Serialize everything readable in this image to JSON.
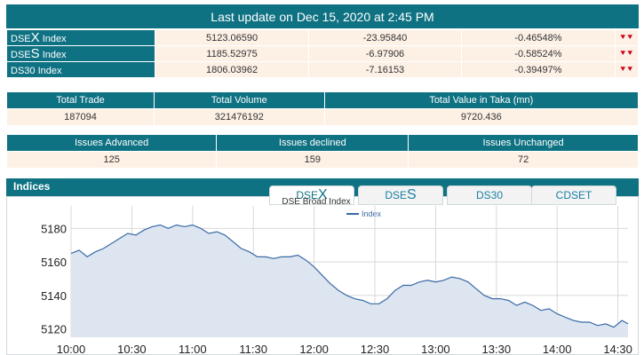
{
  "header": {
    "title": "Last update on Dec 15, 2020 at 2:45 PM"
  },
  "indices": [
    {
      "name_prefix": "DSE",
      "name_big": "X",
      "name_suffix": " Index",
      "value": "5123.06590",
      "change": "-23.95840",
      "percent": "-0.46548%",
      "arrow": "down-chevron-icon"
    },
    {
      "name_prefix": "DSE",
      "name_big": "S",
      "name_suffix": " Index",
      "value": "1185.52975",
      "change": "-6.97906",
      "percent": "-0.58524%",
      "arrow": "down-chevron-icon"
    },
    {
      "name_prefix": "DS30 Index",
      "name_big": "",
      "name_suffix": "",
      "value": "1806.03962",
      "change": "-7.16153",
      "percent": "-0.39497%",
      "arrow": "down-chevron-icon"
    }
  ],
  "trade_stats": {
    "headers": [
      "Total Trade",
      "Total Volume",
      "Total Value in Taka (mn)"
    ],
    "values": [
      "187094",
      "321476192",
      "9720.436"
    ]
  },
  "issue_stats": {
    "headers": [
      "Issues Advanced",
      "Issues declined",
      "Issues Unchanged"
    ],
    "values": [
      "125",
      "159",
      "72"
    ]
  },
  "indices_panel": {
    "title": "Indices",
    "tabs": [
      {
        "prefix": "DSE",
        "big": "X"
      },
      {
        "prefix": "DSE",
        "big": "S"
      },
      {
        "prefix": "DS30",
        "big": ""
      },
      {
        "prefix": "CDSET",
        "big": ""
      }
    ]
  },
  "colors": {
    "teal": "#0f7283",
    "cream": "#fdf1e6",
    "line": "#3a6aa6",
    "fill": "#dde6f0",
    "down": "#d0021b"
  },
  "chart_data": {
    "type": "area",
    "title": "DSE Broad Index",
    "legend": [
      "Index"
    ],
    "legend_position": "top-center",
    "x_ticks": [
      "10:00",
      "10:30",
      "11:00",
      "11:30",
      "12:00",
      "12:30",
      "13:00",
      "13:30",
      "14:00",
      "14:30"
    ],
    "y_ticks": [
      5120,
      5140,
      5160,
      5180
    ],
    "ylim": [
      5115,
      5186
    ],
    "xlim_minutes": [
      0,
      275
    ],
    "grid": true,
    "series": [
      {
        "name": "Index",
        "points": [
          [
            0,
            5165
          ],
          [
            4,
            5167
          ],
          [
            8,
            5163
          ],
          [
            12,
            5166
          ],
          [
            16,
            5168
          ],
          [
            20,
            5171
          ],
          [
            24,
            5174
          ],
          [
            28,
            5177
          ],
          [
            32,
            5176
          ],
          [
            36,
            5179
          ],
          [
            40,
            5181
          ],
          [
            44,
            5182
          ],
          [
            48,
            5180
          ],
          [
            52,
            5182
          ],
          [
            56,
            5181
          ],
          [
            60,
            5182
          ],
          [
            64,
            5180
          ],
          [
            68,
            5177
          ],
          [
            72,
            5178
          ],
          [
            76,
            5176
          ],
          [
            80,
            5172
          ],
          [
            84,
            5168
          ],
          [
            88,
            5166
          ],
          [
            92,
            5163
          ],
          [
            96,
            5163
          ],
          [
            100,
            5162
          ],
          [
            104,
            5163
          ],
          [
            108,
            5163
          ],
          [
            112,
            5164
          ],
          [
            116,
            5161
          ],
          [
            120,
            5157
          ],
          [
            124,
            5152
          ],
          [
            128,
            5147
          ],
          [
            132,
            5143
          ],
          [
            136,
            5140
          ],
          [
            140,
            5138
          ],
          [
            144,
            5137
          ],
          [
            148,
            5135
          ],
          [
            152,
            5135
          ],
          [
            156,
            5138
          ],
          [
            160,
            5143
          ],
          [
            164,
            5146
          ],
          [
            168,
            5146
          ],
          [
            172,
            5148
          ],
          [
            176,
            5149
          ],
          [
            180,
            5148
          ],
          [
            184,
            5149
          ],
          [
            188,
            5151
          ],
          [
            192,
            5150
          ],
          [
            196,
            5148
          ],
          [
            200,
            5144
          ],
          [
            204,
            5140
          ],
          [
            208,
            5138
          ],
          [
            212,
            5138
          ],
          [
            216,
            5137
          ],
          [
            220,
            5134
          ],
          [
            224,
            5136
          ],
          [
            228,
            5134
          ],
          [
            232,
            5131
          ],
          [
            236,
            5132
          ],
          [
            240,
            5129
          ],
          [
            244,
            5127
          ],
          [
            248,
            5125
          ],
          [
            252,
            5124
          ],
          [
            256,
            5124
          ],
          [
            260,
            5122
          ],
          [
            264,
            5123
          ],
          [
            268,
            5121
          ],
          [
            272,
            5125
          ],
          [
            275,
            5123
          ]
        ]
      }
    ]
  }
}
